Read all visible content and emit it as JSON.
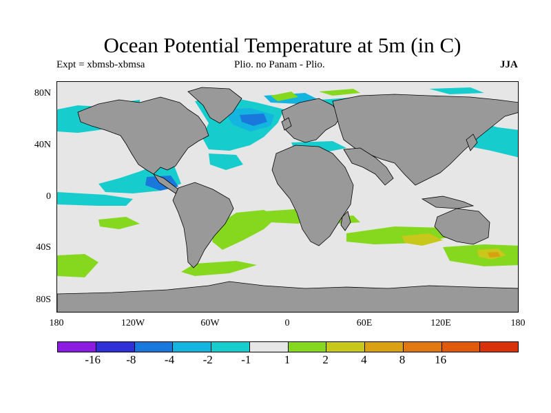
{
  "title": "Ocean Potential Temperature at 5m (in C)",
  "subtitle_left": "Expt = xbmsb-xbmsa",
  "subtitle_center": "Plio. no Panam - Plio.",
  "subtitle_right": "JJA",
  "map": {
    "projection": "cylindrical equidistant",
    "lon_range": [
      -180,
      180
    ],
    "lat_range": [
      -90,
      90
    ],
    "land_color": "#999999",
    "zero_band_color": "#e6e6e6"
  },
  "y_ticks": [
    "80N",
    "40N",
    "0",
    "40S",
    "80S"
  ],
  "x_ticks": [
    "180",
    "120W",
    "60W",
    "0",
    "60E",
    "120E",
    "180"
  ],
  "colorbar": {
    "colors": [
      "#8a1be0",
      "#3030d8",
      "#1a78dc",
      "#14b4e0",
      "#16cccc",
      "#e6e6e6",
      "#86d81e",
      "#c8c81a",
      "#d9a014",
      "#e07812",
      "#e05a0e",
      "#d8320a"
    ],
    "labels": [
      "-16",
      "-8",
      "-4",
      "-2",
      "-1",
      "1",
      "2",
      "4",
      "8",
      "16"
    ]
  }
}
